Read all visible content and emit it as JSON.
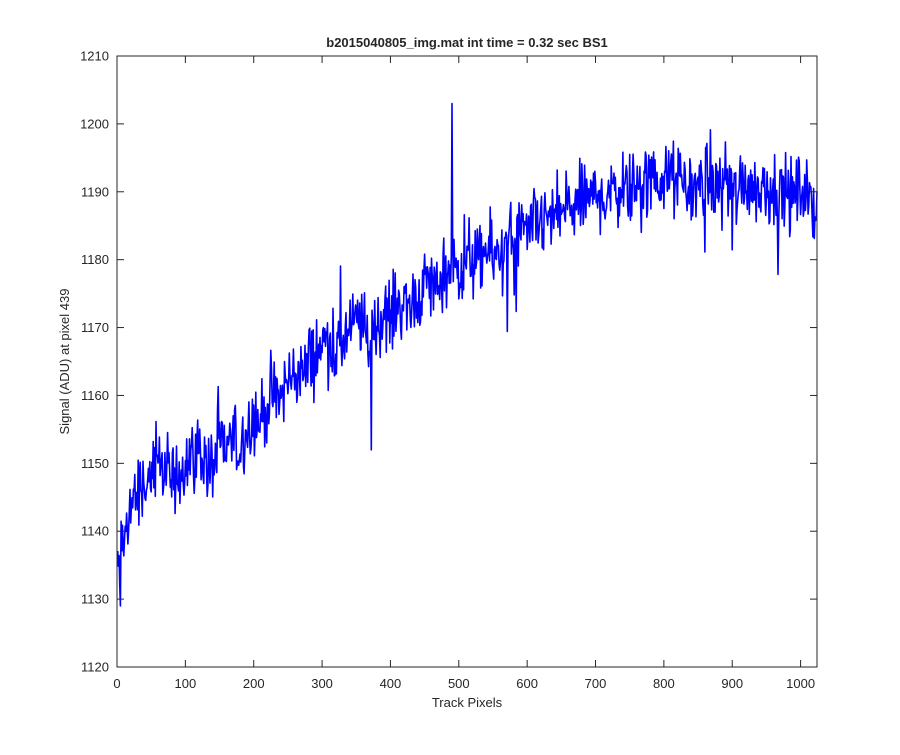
{
  "chart_data": {
    "type": "line",
    "title": "b2015040805_img.mat int time = 0.32 sec   BS1",
    "xlabel": "Track Pixels",
    "ylabel": "Signal (ADU) at pixel 439",
    "xlim": [
      0,
      1024
    ],
    "ylim": [
      1120,
      1210
    ],
    "xticks": [
      0,
      100,
      200,
      300,
      400,
      500,
      600,
      700,
      800,
      900,
      1000
    ],
    "yticks": [
      1120,
      1130,
      1140,
      1150,
      1160,
      1170,
      1180,
      1190,
      1200,
      1210
    ],
    "xtick_labels": [
      "0",
      "100",
      "200",
      "300",
      "400",
      "500",
      "600",
      "700",
      "800",
      "900",
      "1000"
    ],
    "ytick_labels": [
      "1120",
      "1130",
      "1140",
      "1150",
      "1160",
      "1170",
      "1180",
      "1190",
      "1200",
      "1210"
    ],
    "grid": false,
    "line_color": "#0000ff",
    "series": [
      {
        "x_start": 1,
        "x_step": 8,
        "values": [
          1133,
          1138,
          1143,
          1145,
          1146,
          1147,
          1148,
          1148,
          1150,
          1149,
          1147,
          1148,
          1150,
          1151,
          1151,
          1152,
          1150,
          1149,
          1151,
          1152,
          1153,
          1153,
          1152,
          1154,
          1156,
          1157,
          1156,
          1158,
          1160,
          1159,
          1160,
          1162,
          1163,
          1164,
          1163,
          1165,
          1166,
          1167,
          1168,
          1168,
          1167,
          1168,
          1169,
          1170,
          1171,
          1170,
          1168,
          1170,
          1171,
          1172,
          1172,
          1173,
          1174,
          1173,
          1174,
          1175,
          1176,
          1177,
          1176,
          1177,
          1177,
          1178,
          1178,
          1179,
          1180,
          1180,
          1179,
          1181,
          1181,
          1180,
          1182,
          1182,
          1183,
          1184,
          1184,
          1183,
          1185,
          1185,
          1186,
          1186,
          1186,
          1187,
          1188,
          1187,
          1188,
          1189,
          1189,
          1189,
          1190,
          1189,
          1191,
          1190,
          1191,
          1191,
          1190,
          1192,
          1192,
          1191,
          1192,
          1192,
          1191,
          1193,
          1191,
          1192,
          1191,
          1190,
          1191,
          1191,
          1192,
          1190,
          1191,
          1192,
          1191,
          1190,
          1191,
          1192,
          1191,
          1190,
          1191,
          1191,
          1190,
          1191,
          1190,
          1189,
          1190,
          1190,
          1189,
          1188
        ],
        "noise_amplitude": 5,
        "spikes": [
          [
            490,
            1203
          ],
          [
            372,
            1152
          ],
          [
            5,
            1129
          ]
        ]
      }
    ]
  }
}
